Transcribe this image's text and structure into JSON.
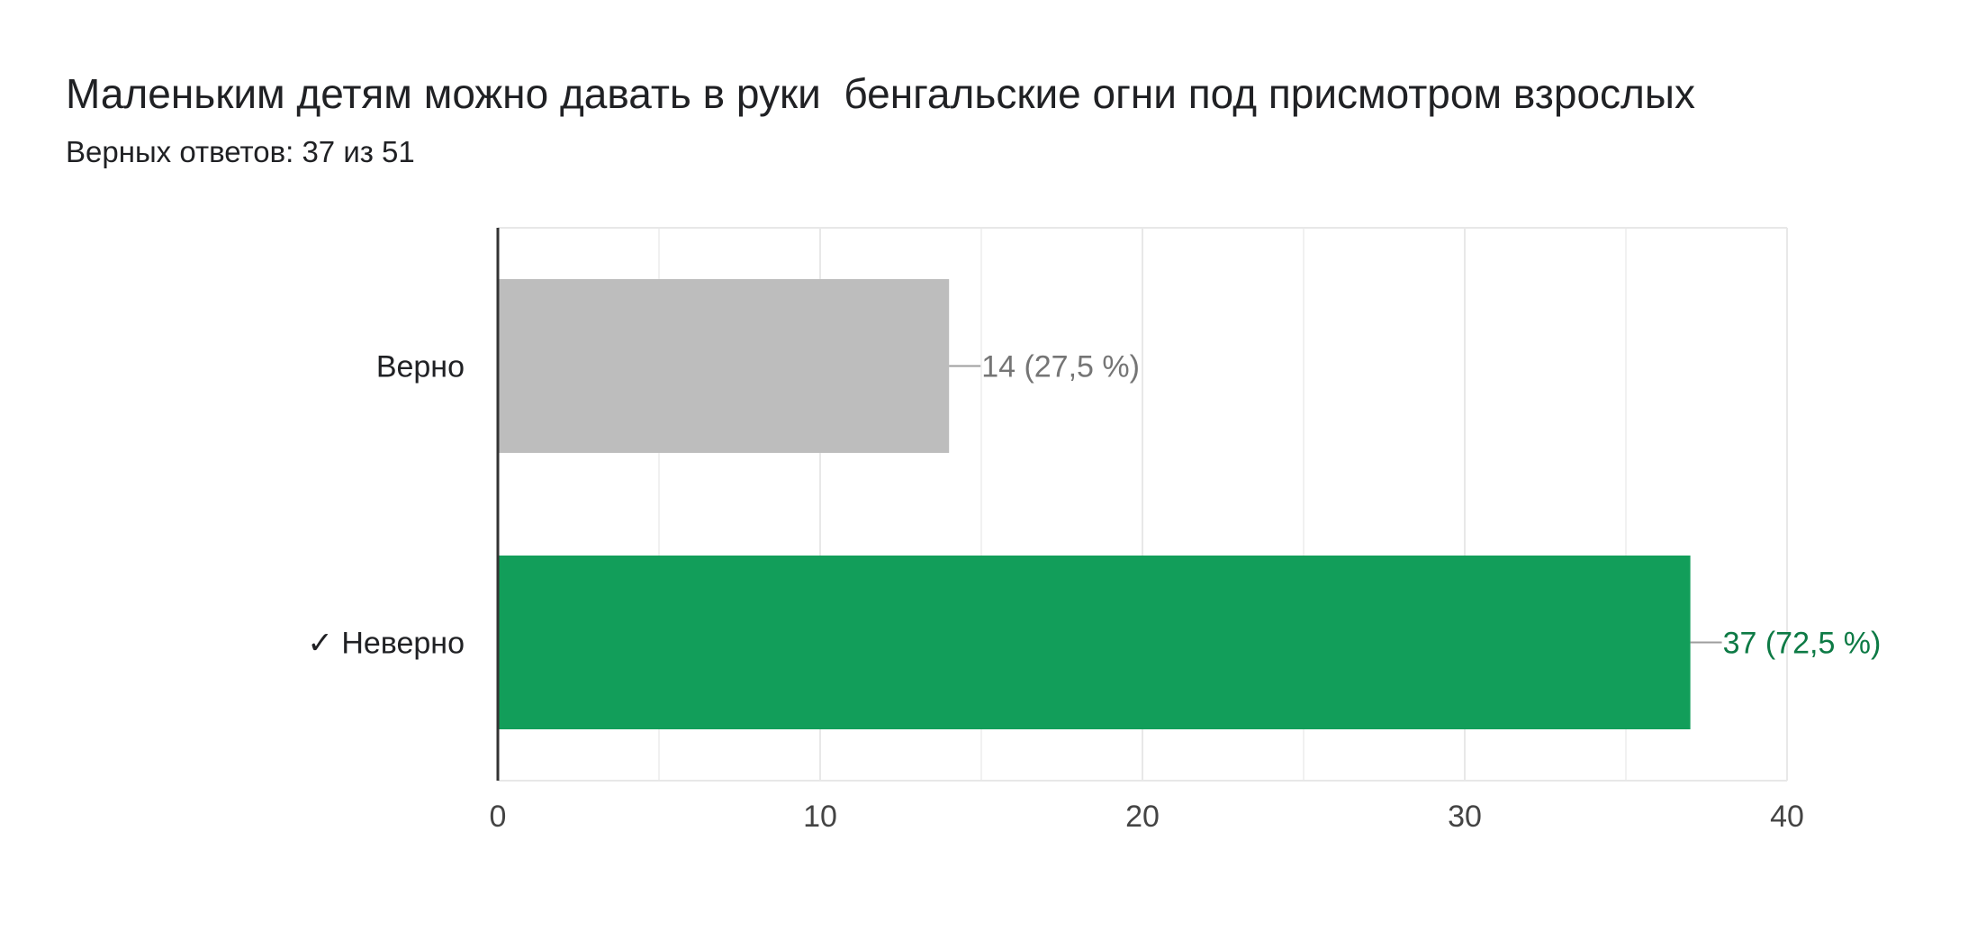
{
  "question": {
    "title": "Маленьким детям можно давать в руки  бенгальские огни под присмотром взрослых",
    "subtitle": "Верных ответов: 37 из 51"
  },
  "colors": {
    "wrong_answer_bar": "#bdbdbd",
    "wrong_answer_label": "#757575",
    "correct_answer_bar": "#129e5a",
    "correct_answer_label": "#0d7a45",
    "axis": "#333333",
    "grid": "#e8e8e8",
    "text": "#202124"
  },
  "chart_data": {
    "type": "bar",
    "orientation": "horizontal",
    "categories": [
      "Верно",
      "✓ Неверно"
    ],
    "values": [
      14,
      37
    ],
    "percent_labels": [
      "14 (27,5 %)",
      "37 (72,5 %)"
    ],
    "correct_flags": [
      false,
      true
    ],
    "xlim": [
      0,
      40
    ],
    "xticks": [
      0,
      10,
      20,
      30,
      40
    ],
    "tick_labels": [
      "0",
      "10",
      "20",
      "30",
      "40"
    ],
    "minor_gridlines": [
      5,
      15,
      25,
      35
    ],
    "grid": true,
    "title": "Маленьким детям можно давать в руки  бенгальские огни под присмотром взрослых",
    "xlabel": "",
    "ylabel": ""
  }
}
